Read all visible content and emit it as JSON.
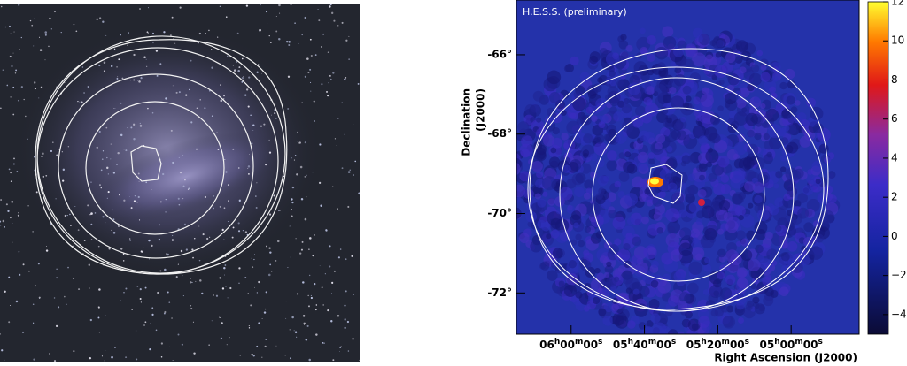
{
  "skymap": {
    "annotation": "H.E.S.S. (preliminary)",
    "y_label": [
      "Declination",
      "(J2000)"
    ],
    "x_label": "Right Ascension (J2000)",
    "ylim": [
      -64.62,
      -73.04
    ],
    "yticks": [
      {
        "value": -66,
        "label": "-66°"
      },
      {
        "value": -68,
        "label": "-68°"
      },
      {
        "value": -70,
        "label": "-70°"
      },
      {
        "value": -72,
        "label": "-72°"
      }
    ],
    "xlim": [
      93.73,
      70.36
    ],
    "xticks": [
      {
        "value": 90,
        "parts": [
          "06",
          "h",
          "00",
          "m",
          "00",
          "s"
        ]
      },
      {
        "value": 85,
        "parts": [
          "05",
          "h",
          "40",
          "m",
          "00",
          "s"
        ]
      },
      {
        "value": 80,
        "parts": [
          "05",
          "h",
          "20",
          "m",
          "00",
          "s"
        ]
      },
      {
        "value": 75,
        "parts": [
          "05",
          "h",
          "00",
          "m",
          "00",
          "s"
        ]
      }
    ]
  },
  "colorbar": {
    "lim": [
      -5,
      12
    ],
    "ticks": [
      {
        "value": -4,
        "label": "−4"
      },
      {
        "value": -2,
        "label": "−2"
      },
      0,
      2,
      4,
      6,
      8,
      10,
      12
    ]
  }
}
